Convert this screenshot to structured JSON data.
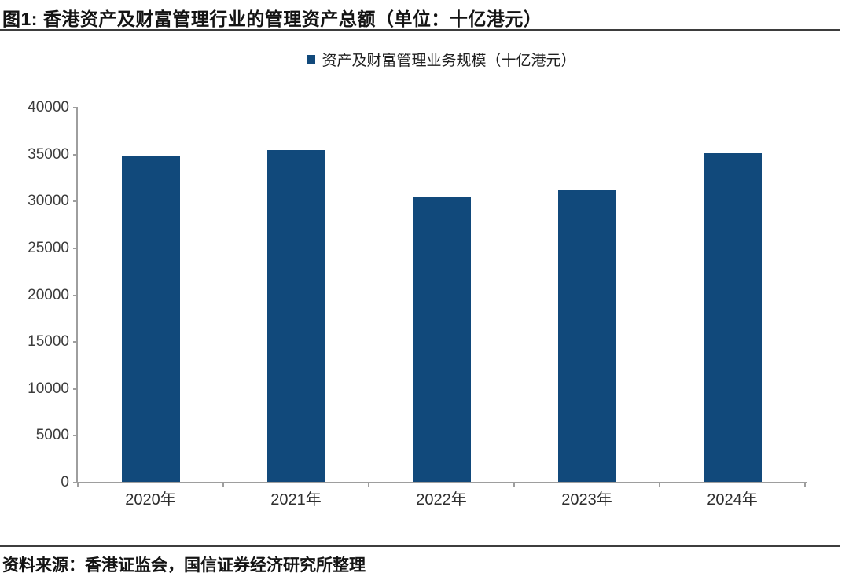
{
  "figure": {
    "title": "图1: 香港资产及财富管理行业的管理资产总额（单位：十亿港元）",
    "source": "资料来源：香港证监会，国信证券经济研究所整理"
  },
  "chart_data": {
    "type": "bar",
    "title": "香港资产及财富管理行业的管理资产总额",
    "unit": "十亿港元",
    "legend": [
      "资产及财富管理业务规模（十亿港元）"
    ],
    "legend_position": "top-center",
    "categories": [
      "2020年",
      "2021年",
      "2022年",
      "2023年",
      "2024年"
    ],
    "values": [
      34900,
      35500,
      30500,
      31200,
      35100
    ],
    "xlabel": "",
    "ylabel": "",
    "ylim": [
      0,
      40000
    ],
    "ytick_step": 5000,
    "yticks": [
      0,
      5000,
      10000,
      15000,
      20000,
      25000,
      30000,
      35000,
      40000
    ],
    "grid": false,
    "bar_color": "#11497B",
    "axis_color": "#9e9e9e"
  }
}
